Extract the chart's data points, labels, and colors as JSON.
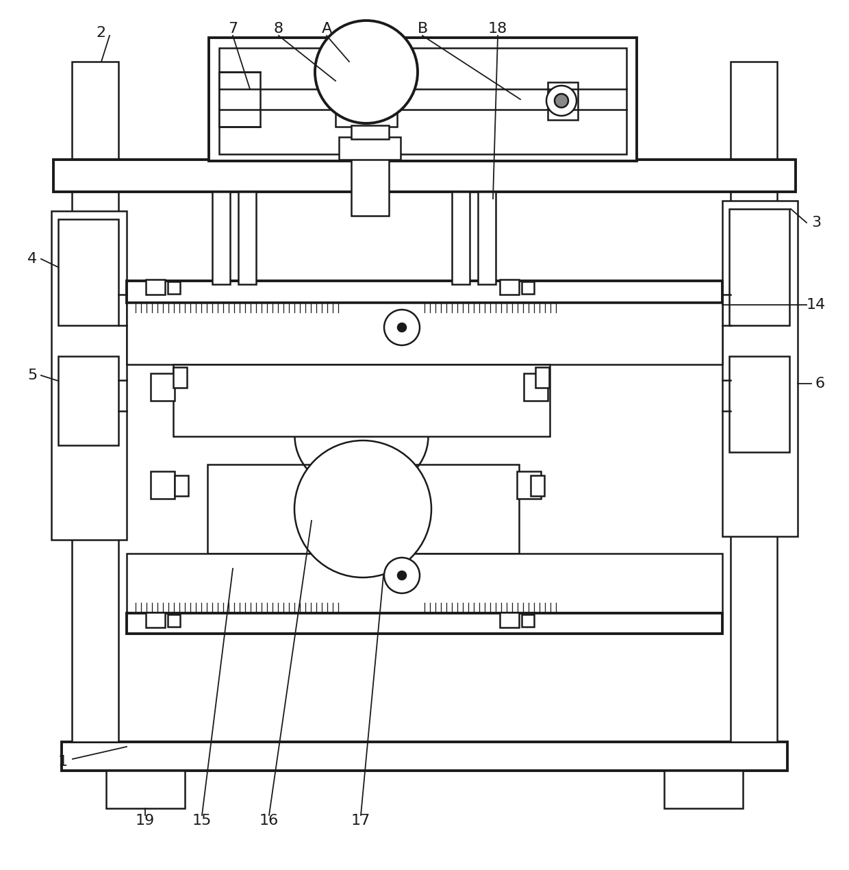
{
  "bg_color": "#ffffff",
  "line_color": "#1a1a1a",
  "lw": 1.8,
  "tlw": 2.8,
  "fig_width": 12.4,
  "fig_height": 12.7
}
